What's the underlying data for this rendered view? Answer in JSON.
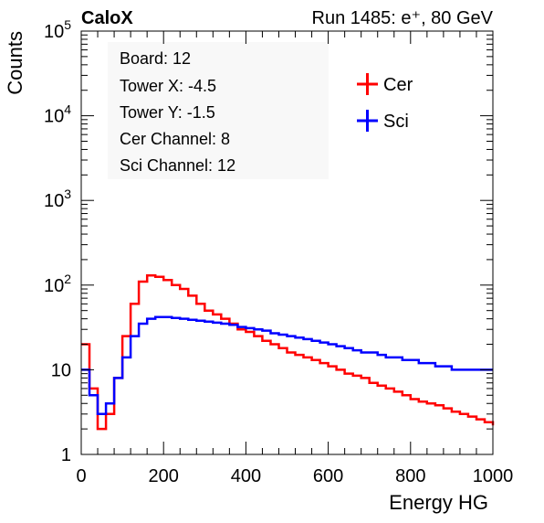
{
  "chart_data": {
    "type": "line",
    "experiment_label": "CaloX",
    "run_info": "Run 1485: e⁺, 80 GeV",
    "xlabel": "Energy HG",
    "ylabel": "Counts",
    "xlim": [
      0,
      1000
    ],
    "ylim": [
      1,
      100000
    ],
    "y_scale": "log",
    "grid": false,
    "legend_position": "top-right",
    "x_ticks": [
      "0",
      "200",
      "400",
      "600",
      "800",
      "1000"
    ],
    "y_ticks": [
      {
        "base": "1",
        "exp": ""
      },
      {
        "base": "10",
        "exp": ""
      },
      {
        "base": "10",
        "exp": "2"
      },
      {
        "base": "10",
        "exp": "3"
      },
      {
        "base": "10",
        "exp": "4"
      },
      {
        "base": "10",
        "exp": "5"
      }
    ],
    "info_box": [
      "Board: 12",
      "Tower X: -4.5",
      "Tower Y: -1.5",
      "Cer Channel: 8",
      "Sci Channel: 12"
    ],
    "series": [
      {
        "name": "Cer",
        "color": "#ff0000",
        "x": [
          0,
          20,
          40,
          60,
          80,
          100,
          120,
          140,
          160,
          180,
          200,
          220,
          240,
          260,
          280,
          300,
          320,
          340,
          360,
          380,
          400,
          420,
          440,
          460,
          480,
          500,
          520,
          540,
          560,
          580,
          600,
          620,
          640,
          660,
          680,
          700,
          720,
          740,
          760,
          780,
          800,
          820,
          840,
          860,
          880,
          900,
          920,
          940,
          960,
          980,
          1000
        ],
        "y": [
          20,
          6,
          2,
          3,
          8,
          25,
          60,
          110,
          130,
          125,
          115,
          100,
          90,
          75,
          60,
          50,
          45,
          40,
          35,
          30,
          28,
          25,
          22,
          20,
          18,
          16,
          15,
          14,
          13,
          12,
          11,
          10,
          9,
          8.5,
          8,
          7,
          6.5,
          6,
          5.5,
          5,
          4.5,
          4.2,
          4,
          3.8,
          3.5,
          3.2,
          3,
          2.8,
          2.6,
          2.4,
          2.2
        ]
      },
      {
        "name": "Sci",
        "color": "#0000ff",
        "x": [
          0,
          20,
          40,
          60,
          80,
          100,
          120,
          140,
          160,
          180,
          200,
          220,
          240,
          260,
          280,
          300,
          320,
          340,
          360,
          380,
          400,
          420,
          440,
          460,
          480,
          500,
          520,
          540,
          560,
          580,
          600,
          620,
          640,
          660,
          680,
          700,
          720,
          740,
          760,
          780,
          800,
          820,
          840,
          860,
          880,
          900,
          920,
          940,
          960,
          980,
          1000
        ],
        "y": [
          10,
          5,
          3,
          4,
          8,
          14,
          25,
          35,
          40,
          42,
          42,
          41,
          40,
          39,
          38,
          37,
          36,
          35,
          34,
          32,
          31,
          30,
          29,
          27,
          26,
          25,
          24,
          23,
          22,
          21,
          20,
          19,
          18,
          17,
          16,
          16,
          15,
          14,
          14,
          13,
          13,
          12,
          12,
          11,
          11,
          10,
          10,
          10,
          10,
          10,
          10
        ]
      }
    ]
  }
}
